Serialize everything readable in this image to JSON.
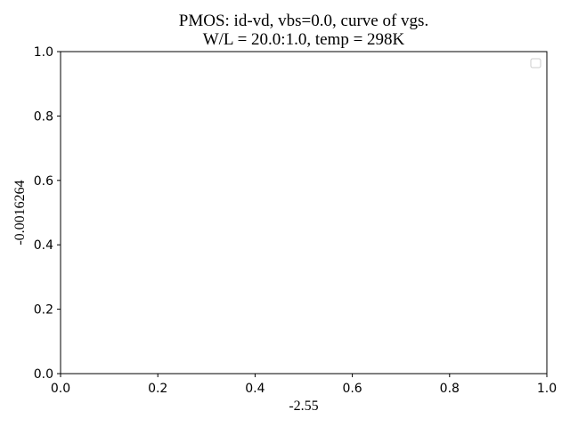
{
  "chart_data": {
    "type": "line",
    "title_line1": "PMOS: id-vd, vbs=0.0, curve of vgs.",
    "title_line2": "W/L = 20.0:1.0, temp = 298K",
    "xlabel": "-2.55",
    "ylabel": "-0.0016264",
    "xlim": [
      0.0,
      1.0
    ],
    "ylim": [
      0.0,
      1.0
    ],
    "x_ticks": [
      "0.0",
      "0.2",
      "0.4",
      "0.6",
      "0.8",
      "1.0"
    ],
    "y_ticks": [
      "0.0",
      "0.2",
      "0.4",
      "0.6",
      "0.8",
      "1.0"
    ],
    "series": [],
    "grid": false,
    "legend": {
      "placement": "top-right",
      "entries": []
    }
  }
}
